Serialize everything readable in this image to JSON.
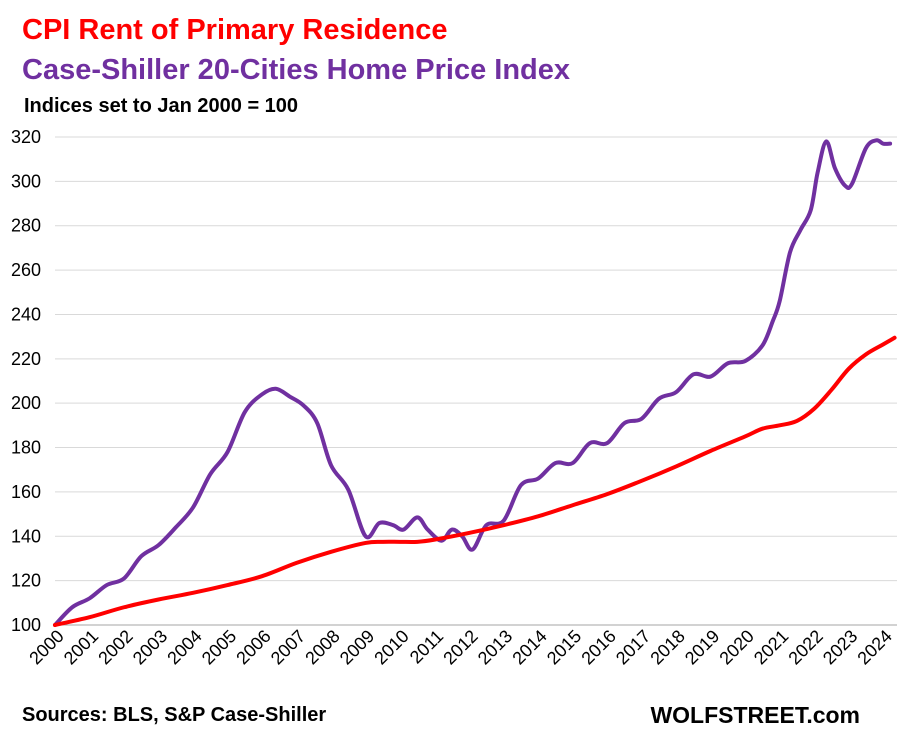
{
  "header": {
    "title_line1": "CPI Rent of Primary Residence",
    "title_line2": "Case-Shiller 20-Cities Home Price Index",
    "subtitle": "Indices set to Jan 2000 = 100"
  },
  "footer": {
    "source": "Sources: BLS, S&P Case-Shiller",
    "brand": "WOLFSTREET.com"
  },
  "chart_data": {
    "type": "line",
    "title": "CPI Rent of Primary Residence / Case-Shiller 20-Cities Home Price Index",
    "subtitle": "Indices set to Jan 2000 = 100",
    "xlabel": "",
    "ylabel": "",
    "ylim": [
      100,
      320
    ],
    "yticks": [
      100,
      120,
      140,
      160,
      180,
      200,
      220,
      240,
      260,
      280,
      300,
      320
    ],
    "xlim": [
      2000,
      2024.4
    ],
    "xticks": [
      "2000",
      "2001",
      "2002",
      "2003",
      "2004",
      "2005",
      "2006",
      "2007",
      "2008",
      "2009",
      "2010",
      "2011",
      "2012",
      "2013",
      "2014",
      "2015",
      "2016",
      "2017",
      "2018",
      "2019",
      "2020",
      "2021",
      "2022",
      "2023",
      "2024"
    ],
    "grid": "horizontal",
    "legend": "none (series named in title lines)",
    "series": [
      {
        "name": "CPI Rent of Primary Residence",
        "color": "#ff0000",
        "points": [
          [
            2000.0,
            100
          ],
          [
            2001.0,
            103.5
          ],
          [
            2002.0,
            108
          ],
          [
            2003.0,
            111.5
          ],
          [
            2004.0,
            114.5
          ],
          [
            2005.0,
            118
          ],
          [
            2006.0,
            122
          ],
          [
            2007.0,
            128
          ],
          [
            2008.0,
            133
          ],
          [
            2009.0,
            137
          ],
          [
            2009.5,
            137.5
          ],
          [
            2010.0,
            137.5
          ],
          [
            2010.5,
            137.5
          ],
          [
            2011.0,
            138.5
          ],
          [
            2012.0,
            141.5
          ],
          [
            2013.0,
            145
          ],
          [
            2014.0,
            149
          ],
          [
            2015.0,
            154
          ],
          [
            2016.0,
            159
          ],
          [
            2017.0,
            165
          ],
          [
            2018.0,
            171.5
          ],
          [
            2019.0,
            178.5
          ],
          [
            2020.0,
            185
          ],
          [
            2020.5,
            188.5
          ],
          [
            2021.0,
            190
          ],
          [
            2021.5,
            192
          ],
          [
            2022.0,
            197.5
          ],
          [
            2022.5,
            206
          ],
          [
            2023.0,
            215.5
          ],
          [
            2023.5,
            222
          ],
          [
            2024.0,
            226.5
          ],
          [
            2024.33,
            229.5
          ]
        ]
      },
      {
        "name": "Case-Shiller 20-Cities Home Price Index",
        "color": "#7030a0",
        "points": [
          [
            2000.0,
            100
          ],
          [
            2000.5,
            108
          ],
          [
            2001.0,
            112
          ],
          [
            2001.5,
            118
          ],
          [
            2002.0,
            121
          ],
          [
            2002.5,
            131
          ],
          [
            2003.0,
            136
          ],
          [
            2003.5,
            144
          ],
          [
            2004.0,
            153
          ],
          [
            2004.5,
            168
          ],
          [
            2005.0,
            178
          ],
          [
            2005.5,
            196
          ],
          [
            2006.0,
            204
          ],
          [
            2006.4,
            206.5
          ],
          [
            2006.8,
            203
          ],
          [
            2007.2,
            199
          ],
          [
            2007.6,
            191
          ],
          [
            2008.0,
            172
          ],
          [
            2008.5,
            161
          ],
          [
            2009.0,
            140
          ],
          [
            2009.4,
            146
          ],
          [
            2009.8,
            145
          ],
          [
            2010.1,
            143
          ],
          [
            2010.5,
            148.5
          ],
          [
            2010.8,
            143
          ],
          [
            2011.2,
            138
          ],
          [
            2011.5,
            143
          ],
          [
            2011.8,
            140
          ],
          [
            2012.1,
            134
          ],
          [
            2012.5,
            145
          ],
          [
            2013.0,
            147
          ],
          [
            2013.5,
            163
          ],
          [
            2014.0,
            166
          ],
          [
            2014.5,
            173
          ],
          [
            2015.0,
            173
          ],
          [
            2015.5,
            182
          ],
          [
            2016.0,
            182
          ],
          [
            2016.5,
            191
          ],
          [
            2017.0,
            193
          ],
          [
            2017.5,
            202
          ],
          [
            2018.0,
            205
          ],
          [
            2018.5,
            213
          ],
          [
            2019.0,
            212
          ],
          [
            2019.5,
            218
          ],
          [
            2020.0,
            219
          ],
          [
            2020.5,
            226
          ],
          [
            2020.8,
            237
          ],
          [
            2021.0,
            246
          ],
          [
            2021.3,
            268
          ],
          [
            2021.6,
            278
          ],
          [
            2021.9,
            287
          ],
          [
            2022.1,
            304
          ],
          [
            2022.35,
            318
          ],
          [
            2022.6,
            306
          ],
          [
            2022.9,
            298
          ],
          [
            2023.1,
            299
          ],
          [
            2023.5,
            315
          ],
          [
            2023.8,
            318.5
          ],
          [
            2024.0,
            317
          ],
          [
            2024.2,
            317
          ]
        ]
      }
    ]
  }
}
